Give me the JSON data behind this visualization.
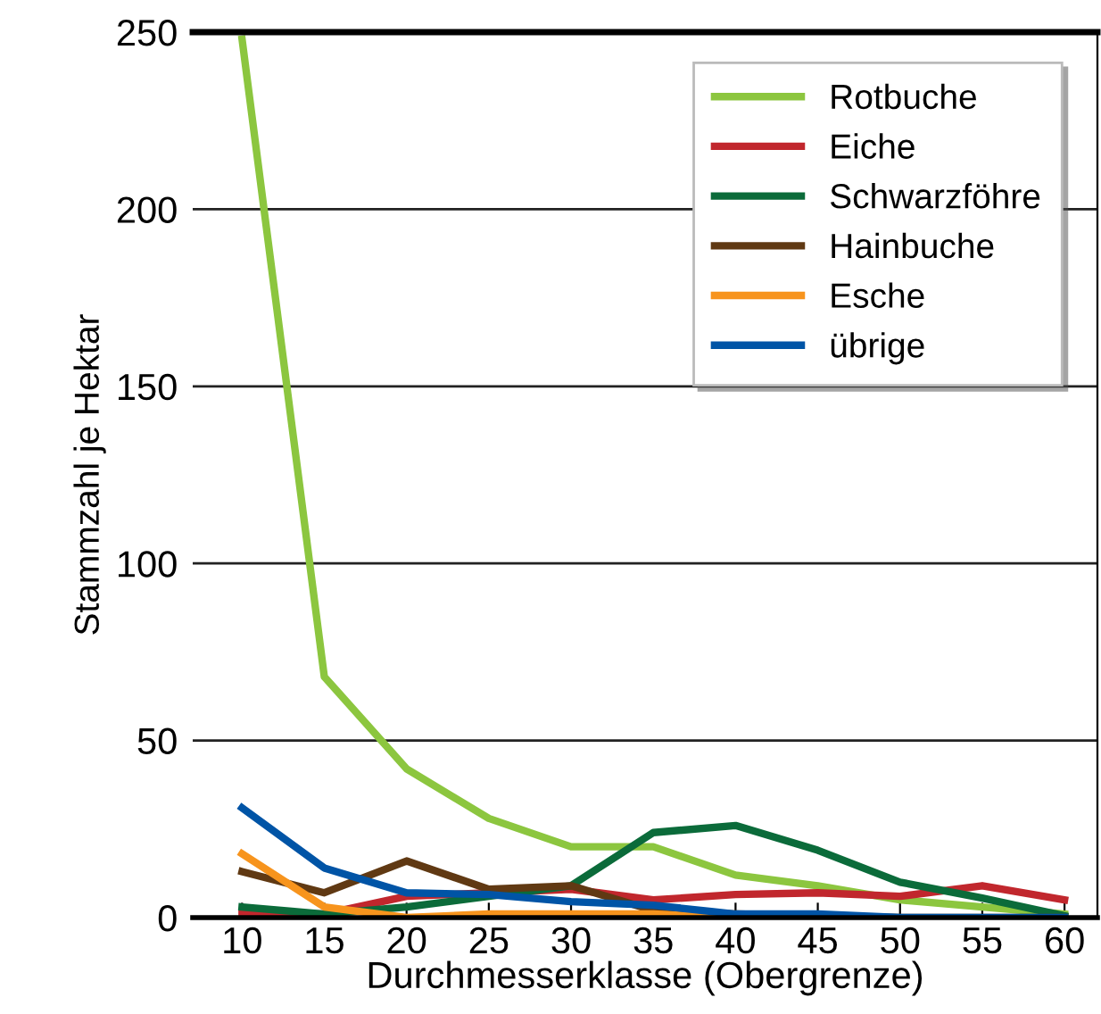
{
  "chart_data": {
    "type": "line",
    "xlabel": "Durchmesserklasse (Obergrenze)",
    "ylabel": "Stammzahl je Hektar",
    "x": [
      10,
      15,
      20,
      25,
      30,
      35,
      40,
      45,
      50,
      55,
      60
    ],
    "series": [
      {
        "name": "Rotbuche",
        "color": "#8cc63f",
        "values": [
          248,
          68,
          42,
          28,
          20,
          20,
          12,
          9,
          5,
          3,
          1
        ]
      },
      {
        "name": "Eiche",
        "color": "#c1272d",
        "values": [
          1,
          1,
          6,
          7,
          8,
          5,
          6.5,
          7,
          6,
          9,
          5
        ]
      },
      {
        "name": "Schwarzföhre",
        "color": "#0b6b3a",
        "values": [
          3,
          1,
          3,
          6,
          9,
          24,
          26,
          19,
          10,
          5.5,
          0.5
        ]
      },
      {
        "name": "Hainbuche",
        "color": "#603913",
        "values": [
          13,
          7,
          16,
          8,
          9,
          2,
          1,
          0.5,
          0,
          0,
          0
        ]
      },
      {
        "name": "Esche",
        "color": "#f7941d",
        "values": [
          18,
          3,
          0,
          1,
          1,
          1,
          0,
          0,
          null,
          null,
          null
        ]
      },
      {
        "name": "übrige",
        "color": "#0054a6",
        "values": [
          31,
          14,
          7,
          6.5,
          4.5,
          3.5,
          1,
          1,
          0,
          0,
          0
        ]
      }
    ],
    "xlim": [
      7,
      62
    ],
    "xticks": [
      10,
      15,
      20,
      25,
      30,
      35,
      40,
      45,
      50,
      55,
      60
    ],
    "ylim": [
      0,
      250
    ],
    "yticks": [
      0,
      50,
      100,
      150,
      200,
      250
    ],
    "grid": "y",
    "legend": "top right",
    "marker": "none",
    "line_style": "solid"
  }
}
